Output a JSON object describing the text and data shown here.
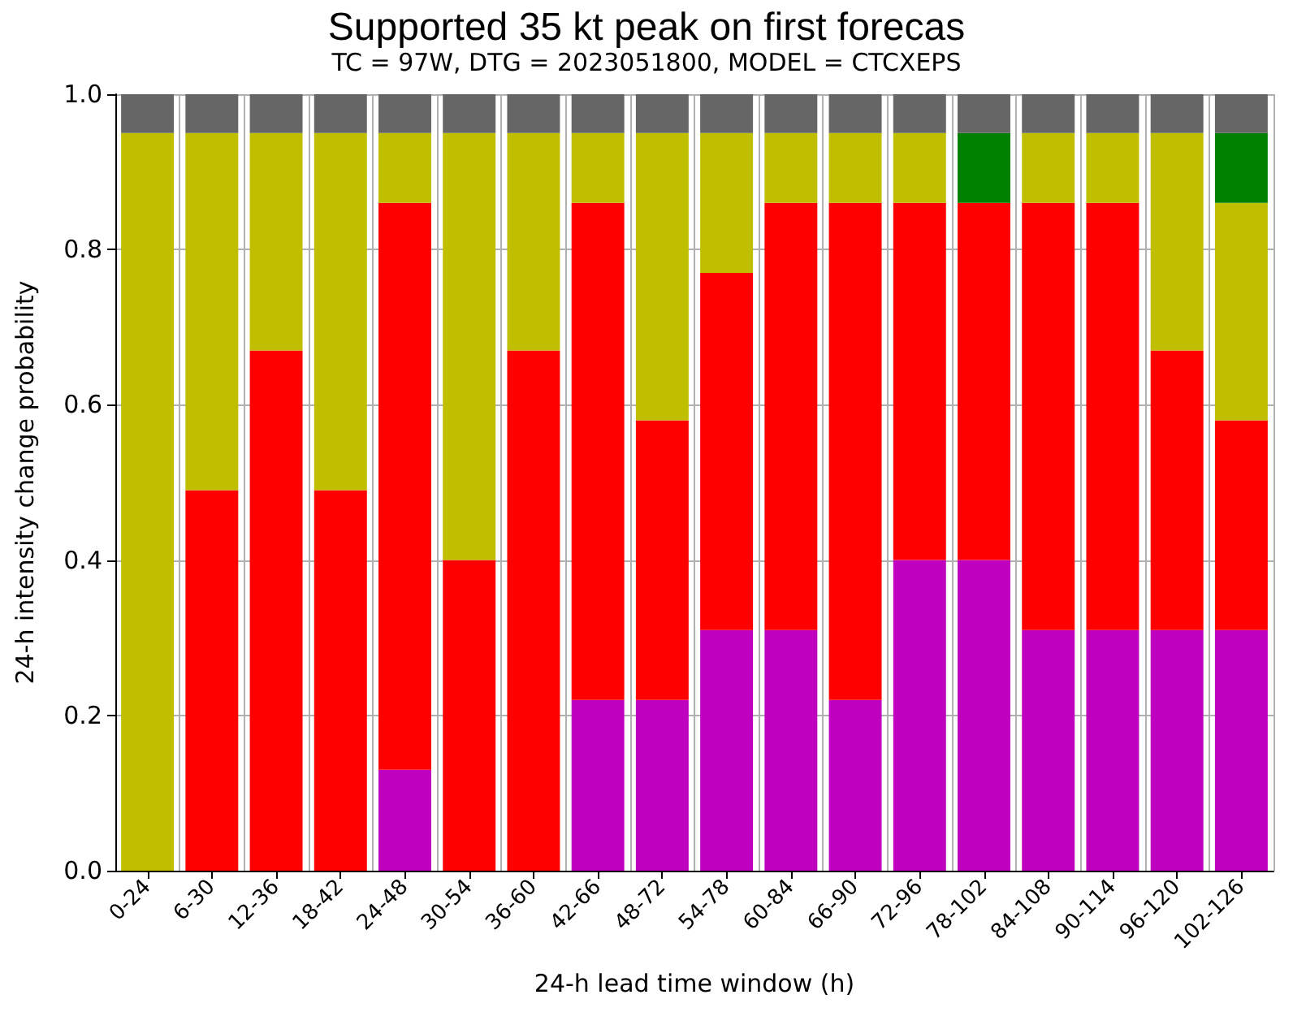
{
  "chart_data": {
    "type": "bar",
    "stacked": true,
    "title": "Supported 35 kt peak on first forecas",
    "subtitle": "TC = 97W, DTG = 2023051800, MODEL = CTCXEPS",
    "xlabel": "24-h lead time window (h)",
    "ylabel": "24-h intensity change probability",
    "categories": [
      "0-24",
      "6-30",
      "12-36",
      "18-42",
      "24-48",
      "30-54",
      "36-60",
      "42-66",
      "48-72",
      "54-78",
      "60-84",
      "66-90",
      "72-96",
      "78-102",
      "84-108",
      "90-114",
      "96-120",
      "102-126"
    ],
    "series": [
      {
        "color": "#bf00bf",
        "values": [
          0,
          0,
          0,
          0,
          0.13,
          0,
          0,
          0.22,
          0.22,
          0.31,
          0.31,
          0.22,
          0.4,
          0.4,
          0.31,
          0.31,
          0.31,
          0.31
        ]
      },
      {
        "color": "#ff0000",
        "values": [
          0,
          0.49,
          0.67,
          0.49,
          0.73,
          0.4,
          0.67,
          0.64,
          0.36,
          0.46,
          0.55,
          0.64,
          0.46,
          0.46,
          0.55,
          0.55,
          0.36,
          0.27
        ]
      },
      {
        "color": "#bfbf00",
        "values": [
          0.95,
          0.46,
          0.28,
          0.46,
          0.09,
          0.55,
          0.28,
          0.09,
          0.37,
          0.18,
          0.09,
          0.09,
          0.09,
          0,
          0.09,
          0.09,
          0.28,
          0.28
        ]
      },
      {
        "color": "#008000",
        "values": [
          0,
          0,
          0,
          0,
          0,
          0,
          0,
          0,
          0,
          0,
          0,
          0,
          0,
          0.09,
          0,
          0,
          0,
          0.09
        ]
      },
      {
        "color": "#666666",
        "values": [
          0.05,
          0.05,
          0.05,
          0.05,
          0.05,
          0.05,
          0.05,
          0.05,
          0.05,
          0.05,
          0.05,
          0.05,
          0.05,
          0.05,
          0.05,
          0.05,
          0.05,
          0.05
        ]
      }
    ],
    "ylim": [
      0,
      1
    ],
    "yticks": [
      {
        "value": 0,
        "label": "0.0"
      },
      0.2,
      0.4,
      0.6,
      0.8,
      {
        "value": 1,
        "label": "1.0"
      }
    ],
    "grid": true
  }
}
